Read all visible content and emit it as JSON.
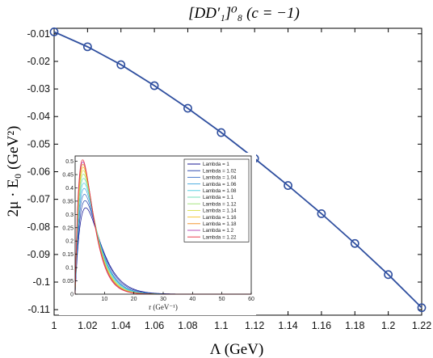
{
  "chart_data": [
    {
      "type": "line",
      "title": "[DD′₁]⁰₈ (c = −1)",
      "xlabel": "Λ (GeV)",
      "ylabel": "2μ · E₀ (GeV²)",
      "xlim": [
        1.0,
        1.22
      ],
      "ylim": [
        -0.112,
        -0.008
      ],
      "xticks": [
        1.0,
        1.02,
        1.04,
        1.06,
        1.08,
        1.1,
        1.12,
        1.14,
        1.16,
        1.18,
        1.2,
        1.22
      ],
      "xtick_labels": [
        "1",
        "1.02",
        "1.04",
        "1.06",
        "1.08",
        "1.1",
        "1.12",
        "1.14",
        "1.16",
        "1.18",
        "1.2",
        "1.22"
      ],
      "yticks": [
        -0.01,
        -0.02,
        -0.03,
        -0.04,
        -0.05,
        -0.06,
        -0.07,
        -0.08,
        -0.09,
        -0.1,
        -0.11
      ],
      "ytick_labels": [
        "-0.01",
        "-0.02",
        "-0.03",
        "-0.04",
        "-0.05",
        "-0.06",
        "-0.07",
        "-0.08",
        "-0.09",
        "-0.1",
        "-0.11"
      ],
      "grid": false,
      "series": [
        {
          "color": "#2f4f9f",
          "marker": "circle-open",
          "x": [
            1.0,
            1.02,
            1.04,
            1.06,
            1.08,
            1.1,
            1.12,
            1.14,
            1.16,
            1.18,
            1.2,
            1.22
          ],
          "y": [
            -0.0093,
            -0.0147,
            -0.0212,
            -0.0288,
            -0.037,
            -0.0458,
            -0.0552,
            -0.065,
            -0.0752,
            -0.086,
            -0.0973,
            -0.1093
          ]
        }
      ]
    },
    {
      "type": "line",
      "role": "inset",
      "xlabel": "r (GeV⁻¹)",
      "ylabel": "",
      "xlim": [
        0,
        60
      ],
      "ylim": [
        0,
        0.52
      ],
      "xticks": [
        10,
        20,
        30,
        40,
        50,
        60
      ],
      "xtick_labels": [
        "10",
        "20",
        "30",
        "40",
        "50",
        "60"
      ],
      "yticks": [
        0,
        0.05,
        0.1,
        0.15,
        0.2,
        0.25,
        0.3,
        0.35,
        0.4,
        0.45,
        0.5
      ],
      "ytick_labels": [
        "0",
        "0.05",
        "0.1",
        "0.15",
        "0.2",
        "0.25",
        "0.3",
        "0.35",
        "0.4",
        "0.45",
        "0.5"
      ],
      "legend_position": "top-right",
      "series": [
        {
          "name": "Lambda = 1",
          "color": "#00008b",
          "peak_r": 3.6,
          "peak": 0.325
        },
        {
          "name": "Lambda = 1.02",
          "color": "#1c3aa8",
          "peak_r": 3.4,
          "peak": 0.352
        },
        {
          "name": "Lambda = 1.04",
          "color": "#3a70c8",
          "peak_r": 3.2,
          "peak": 0.376
        },
        {
          "name": "Lambda = 1.06",
          "color": "#3aa4dc",
          "peak_r": 3.1,
          "peak": 0.398
        },
        {
          "name": "Lambda = 1.08",
          "color": "#46cce0",
          "peak_r": 3.0,
          "peak": 0.418
        },
        {
          "name": "Lambda = 1.1",
          "color": "#62dcb0",
          "peak_r": 2.9,
          "peak": 0.436
        },
        {
          "name": "Lambda = 1.12",
          "color": "#9be070",
          "peak_r": 2.8,
          "peak": 0.452
        },
        {
          "name": "Lambda = 1.14",
          "color": "#d8e040",
          "peak_r": 2.75,
          "peak": 0.466
        },
        {
          "name": "Lambda = 1.16",
          "color": "#f5c020",
          "peak_r": 2.7,
          "peak": 0.478
        },
        {
          "name": "Lambda = 1.18",
          "color": "#f08a18",
          "peak_r": 2.65,
          "peak": 0.489
        },
        {
          "name": "Lambda = 1.2",
          "color": "#b040b0",
          "peak_r": 2.6,
          "peak": 0.498
        },
        {
          "name": "Lambda = 1.22",
          "color": "#e8283a",
          "peak_r": 2.55,
          "peak": 0.506
        }
      ]
    }
  ]
}
